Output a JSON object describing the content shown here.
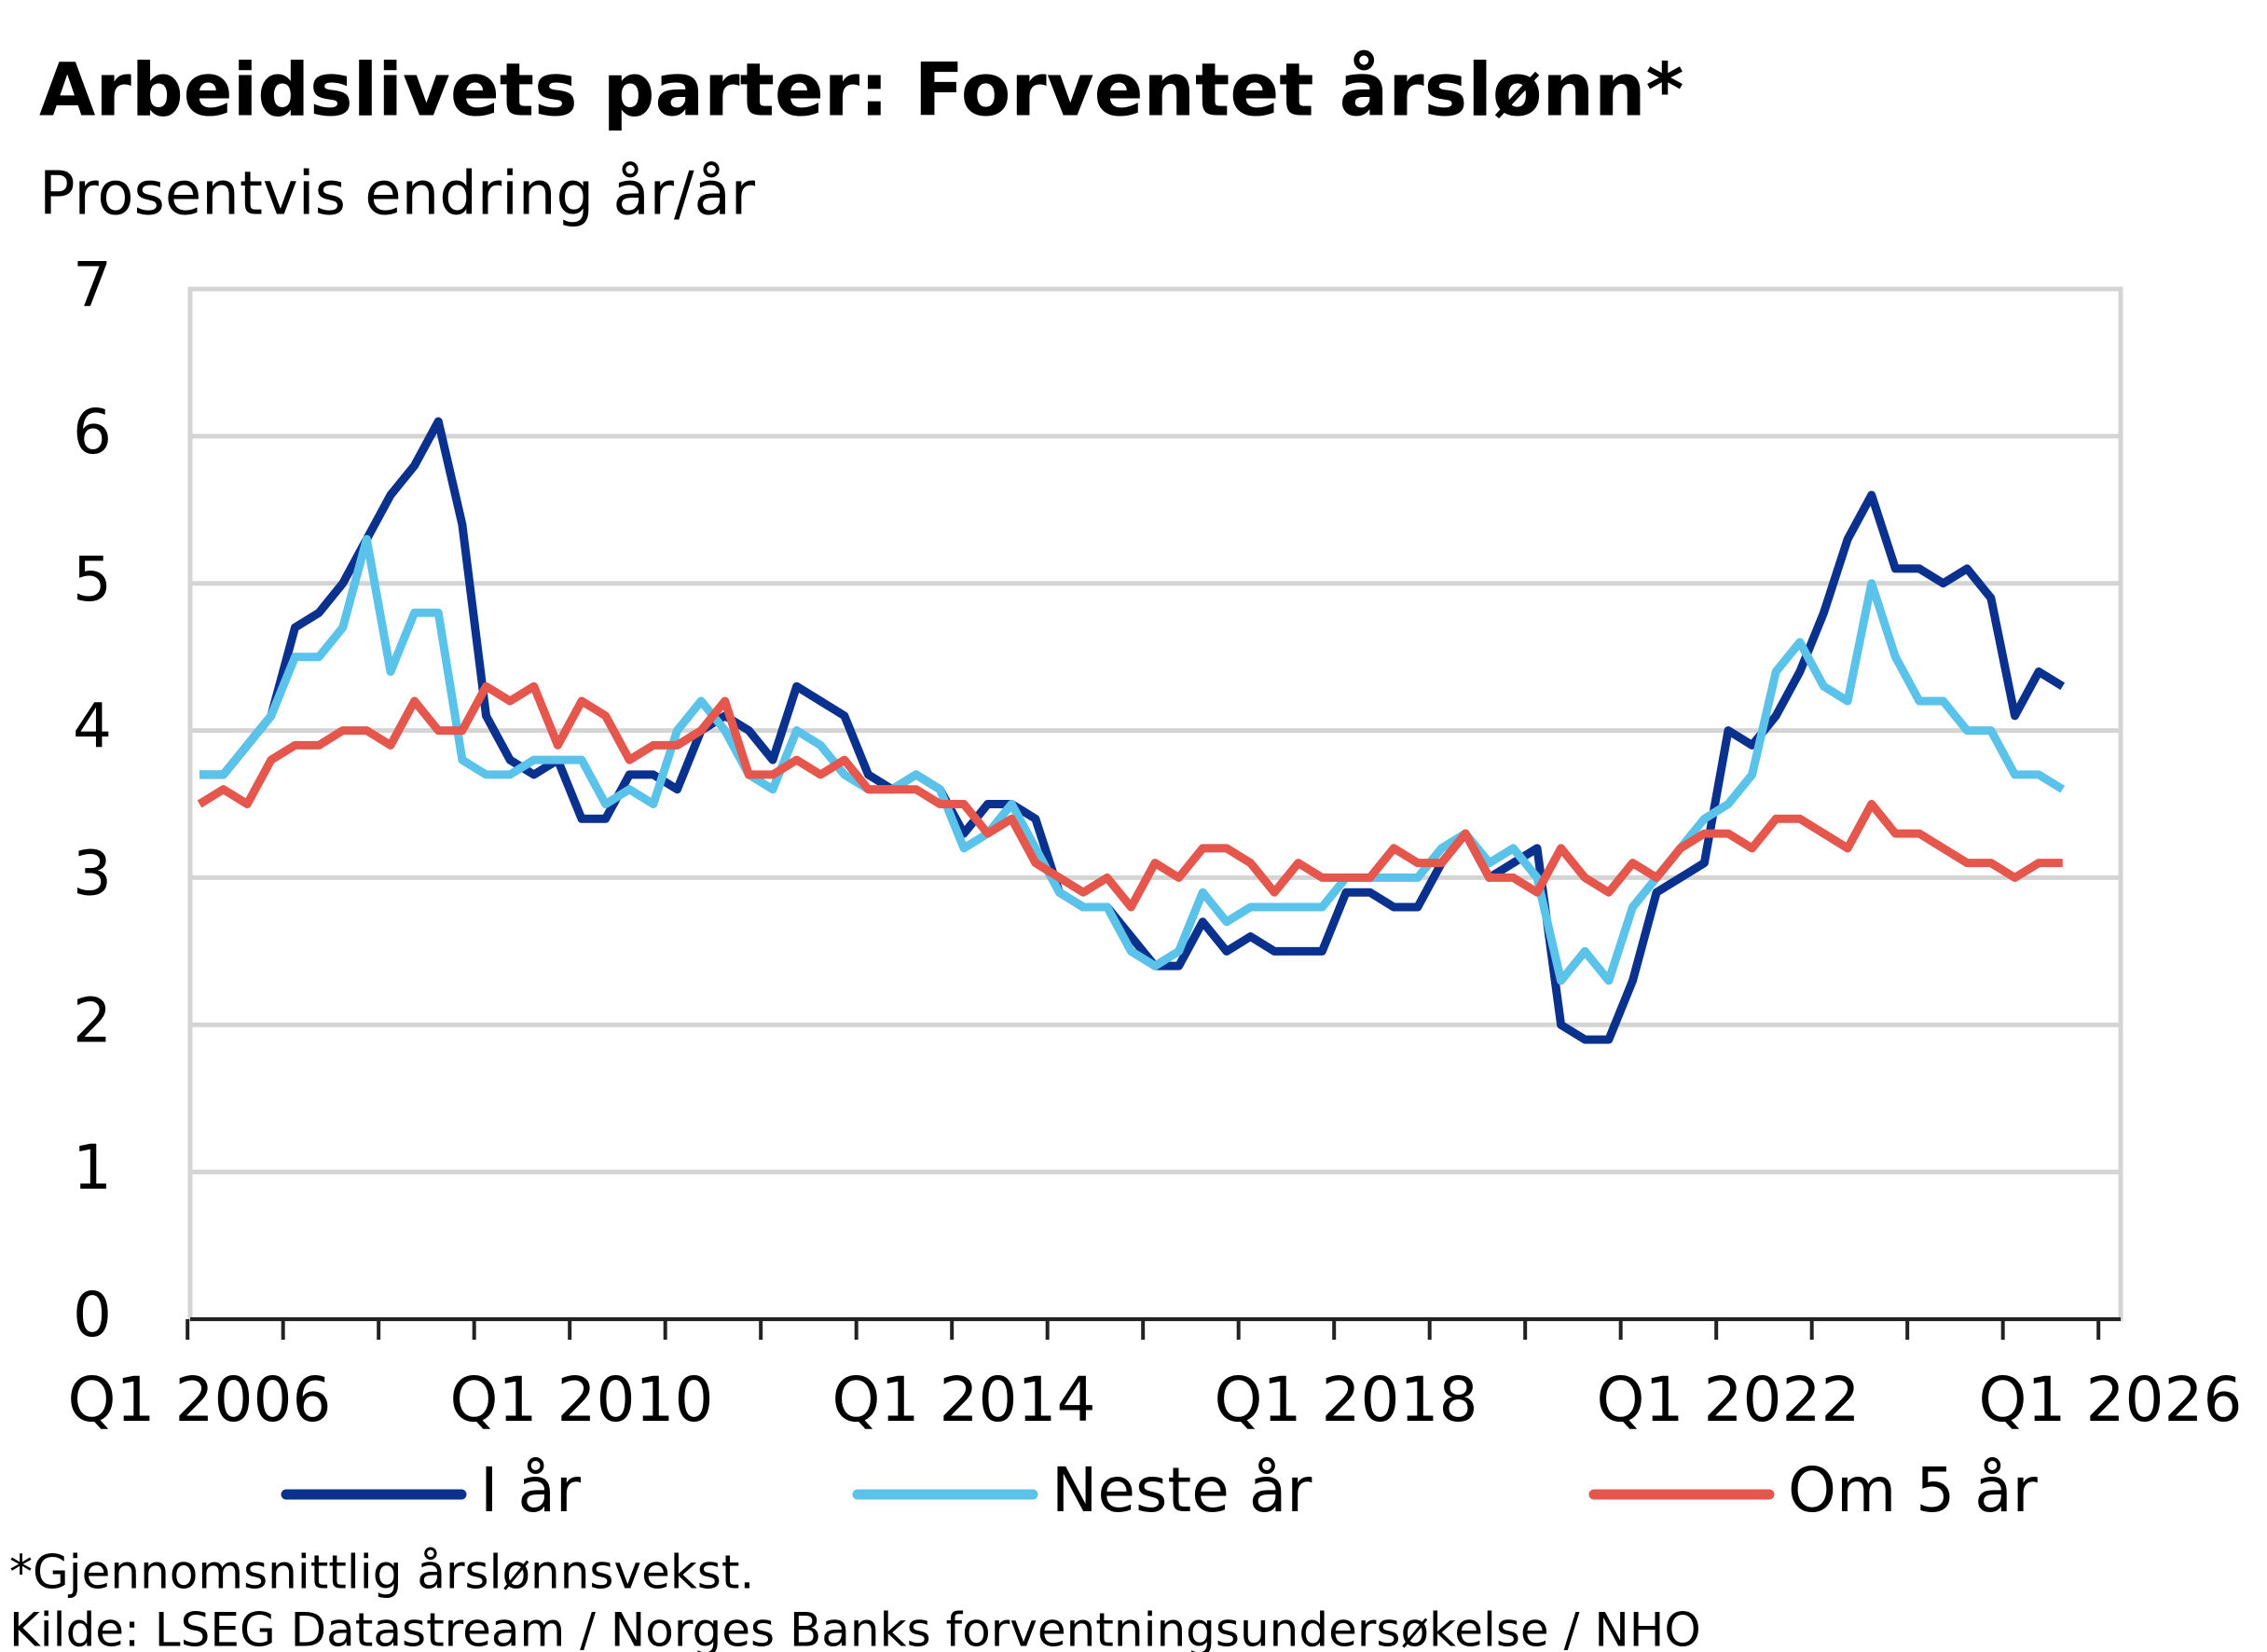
{
  "chart_data": {
    "type": "line",
    "title": "Arbeidslivets parter: Forventet årslønn*",
    "subtitle": "Prosentvis endring år/år",
    "categories": [
      "Q1 2006",
      null,
      null,
      null,
      null,
      null,
      null,
      null,
      null,
      null,
      null,
      null,
      null,
      null,
      null,
      null,
      "Q1 2010",
      null,
      null,
      null,
      null,
      null,
      null,
      null,
      null,
      null,
      null,
      null,
      null,
      null,
      null,
      null,
      "Q1 2014",
      null,
      null,
      null,
      null,
      null,
      null,
      null,
      null,
      null,
      null,
      null,
      null,
      null,
      null,
      null,
      "Q1 2018",
      null,
      null,
      null,
      null,
      null,
      null,
      null,
      null,
      null,
      null,
      null,
      null,
      null,
      null,
      null,
      "Q1 2022",
      null,
      null,
      null,
      null,
      null,
      null,
      null,
      null,
      null,
      null,
      null,
      null,
      null,
      null,
      null,
      "Q1 2026"
    ],
    "series": [
      {
        "name": "I år",
        "color": "#0b318f",
        "values": [
          3.7,
          3.7,
          3.9,
          4.1,
          4.7,
          4.8,
          5.0,
          5.3,
          5.6,
          5.8,
          6.1,
          5.4,
          4.1,
          3.8,
          3.7,
          3.8,
          3.4,
          3.4,
          3.7,
          3.7,
          3.6,
          4.0,
          4.1,
          4.0,
          3.8,
          4.3,
          4.2,
          4.1,
          3.7,
          3.6,
          3.7,
          3.6,
          3.3,
          3.5,
          3.5,
          3.4,
          2.9,
          2.8,
          2.8,
          2.6,
          2.4,
          2.4,
          2.7,
          2.5,
          2.6,
          2.5,
          2.5,
          2.5,
          2.9,
          2.9,
          2.8,
          2.8,
          3.1,
          3.3,
          3.0,
          3.1,
          3.2,
          2.0,
          1.9,
          1.9,
          2.3,
          2.9,
          3.0,
          3.1,
          4.0,
          3.9,
          4.1,
          4.4,
          4.8,
          5.3,
          5.6,
          5.1,
          5.1,
          5.0,
          5.1,
          4.9,
          4.1,
          4.4,
          4.3,
          null,
          null
        ]
      },
      {
        "name": "Neste år",
        "color": "#5bc3ea",
        "values": [
          3.7,
          3.7,
          3.9,
          4.1,
          4.5,
          4.5,
          4.7,
          5.3,
          4.4,
          4.8,
          4.8,
          3.8,
          3.7,
          3.7,
          3.8,
          3.8,
          3.8,
          3.5,
          3.6,
          3.5,
          4.0,
          4.2,
          4.0,
          3.7,
          3.6,
          4.0,
          3.9,
          3.7,
          3.6,
          3.6,
          3.7,
          3.6,
          3.2,
          3.3,
          3.5,
          3.2,
          2.9,
          2.8,
          2.8,
          2.5,
          2.4,
          2.5,
          2.9,
          2.7,
          2.8,
          2.8,
          2.8,
          2.8,
          3.0,
          3.0,
          3.0,
          3.0,
          3.2,
          3.3,
          3.1,
          3.2,
          3.0,
          2.3,
          2.5,
          2.3,
          2.8,
          3.0,
          3.2,
          3.4,
          3.5,
          3.7,
          4.4,
          4.6,
          4.3,
          4.2,
          5.0,
          4.5,
          4.2,
          4.2,
          4.0,
          4.0,
          3.7,
          3.7,
          3.6,
          null,
          null
        ]
      },
      {
        "name": "Om 5 år",
        "color": "#e5574c",
        "values": [
          3.5,
          3.6,
          3.5,
          3.8,
          3.9,
          3.9,
          4.0,
          4.0,
          3.9,
          4.2,
          4.0,
          4.0,
          4.3,
          4.2,
          4.3,
          3.9,
          4.2,
          4.1,
          3.8,
          3.9,
          3.9,
          4.0,
          4.2,
          3.7,
          3.7,
          3.8,
          3.7,
          3.8,
          3.6,
          3.6,
          3.6,
          3.5,
          3.5,
          3.3,
          3.4,
          3.1,
          3.0,
          2.9,
          3.0,
          2.8,
          3.1,
          3.0,
          3.2,
          3.2,
          3.1,
          2.9,
          3.1,
          3.0,
          3.0,
          3.0,
          3.2,
          3.1,
          3.1,
          3.3,
          3.0,
          3.0,
          2.9,
          3.2,
          3.0,
          2.9,
          3.1,
          3.0,
          3.2,
          3.3,
          3.3,
          3.2,
          3.4,
          3.4,
          3.3,
          3.2,
          3.5,
          3.3,
          3.3,
          3.2,
          3.1,
          3.1,
          3.0,
          3.1,
          3.1,
          null,
          null
        ]
      }
    ],
    "ylim": [
      0,
      7
    ],
    "yticks": [
      0,
      1,
      2,
      3,
      4,
      5,
      6,
      7
    ],
    "grid": true,
    "footnotes": [
      "*Gjennomsnittlig årslønnsvekst.",
      "Kilde: LSEG Datastream  / Norges Banks forventningsundersøkelse / NHO"
    ]
  }
}
